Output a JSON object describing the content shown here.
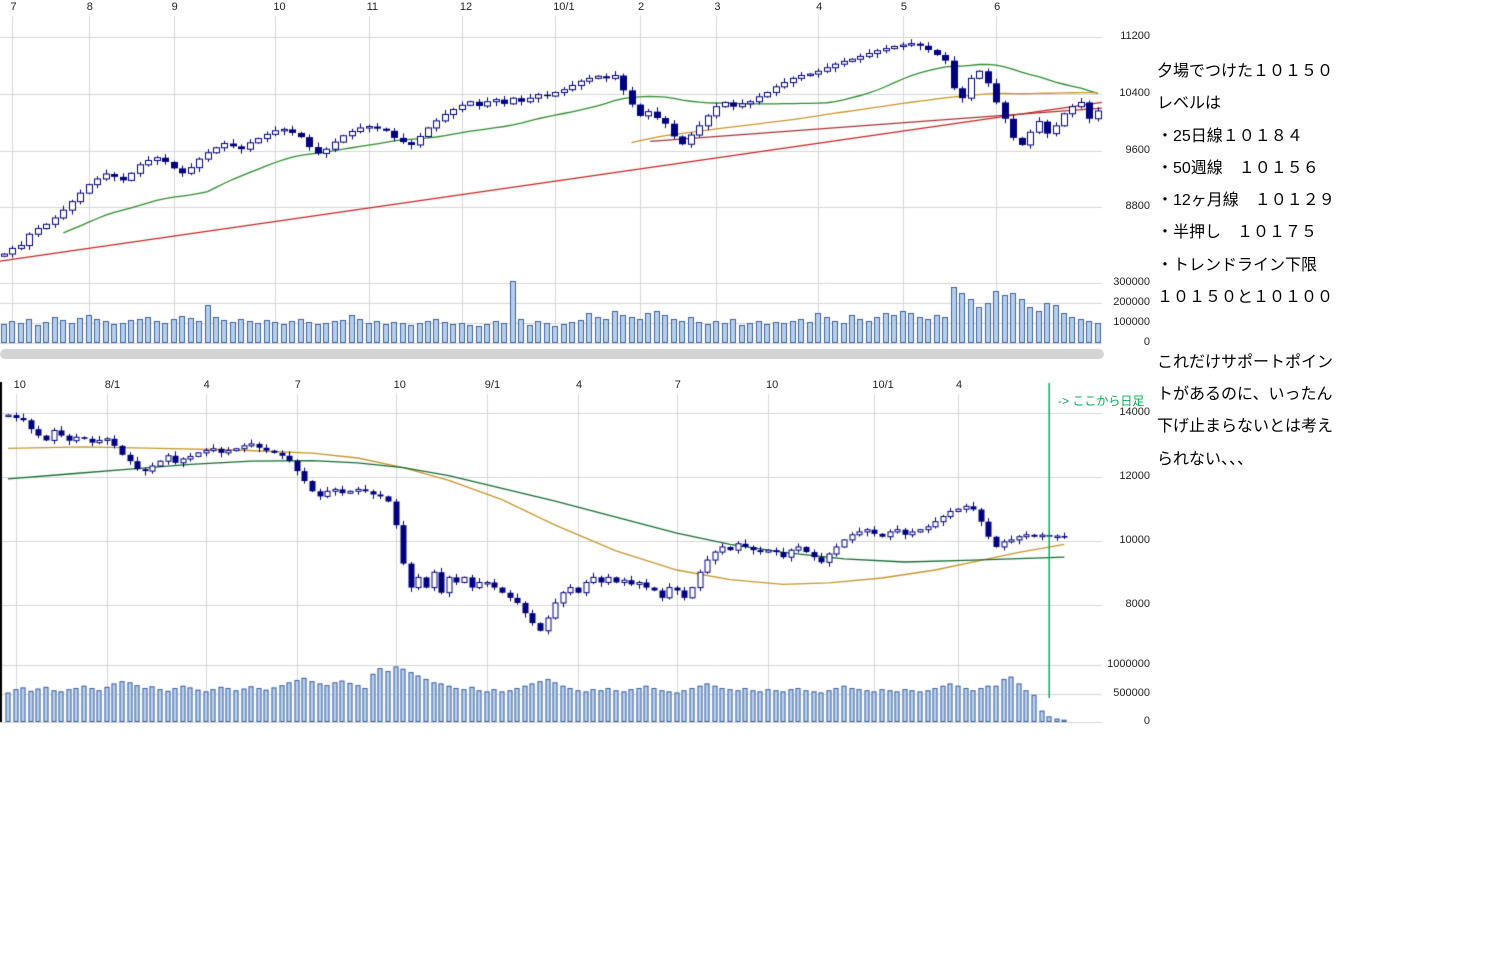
{
  "colors": {
    "grid": "#d6d6d6",
    "axis": "#000000",
    "candle": "#000080",
    "candle_up_fill": "#ffffff",
    "volume_fill": "#b5cfeb",
    "volume_border": "#41609f",
    "green": "#2e8b2e",
    "orange": "#c8962d",
    "dark_green": "#166b33",
    "red": "#cc2222",
    "red2": "#a83333",
    "vline_green": "#00b050",
    "tick_text": "#222222",
    "scrollbar": "#d4d4d4"
  },
  "right_panel": {
    "lines": [
      "夕場でつけた１０１５０",
      "レベルは",
      "・25日線１０１８４",
      "・50週線　１０１５６",
      "・12ヶ月線　１０１２９",
      "・半押し　１０１７５",
      "・トレンドライン下限",
      "１０１５０と１０１００",
      "",
      "これだけサポートポイン",
      "トがあるのに、いったん",
      "下げ止まらないとは考え",
      "られない、、、"
    ]
  },
  "chart_data": [
    {
      "name": "daily-candlestick-with-volume",
      "type": "candlestick",
      "x_labels": [
        {
          "t": "7",
          "i": 1
        },
        {
          "t": "8",
          "i": 10
        },
        {
          "t": "9",
          "i": 20
        },
        {
          "t": "10",
          "i": 32
        },
        {
          "t": "11",
          "i": 43
        },
        {
          "t": "12",
          "i": 54
        },
        {
          "t": "10/1",
          "i": 65
        },
        {
          "t": "2",
          "i": 75
        },
        {
          "t": "3",
          "i": 84
        },
        {
          "t": "4",
          "i": 96
        },
        {
          "t": "5",
          "i": 106
        },
        {
          "t": "6",
          "i": 117
        }
      ],
      "y_ticks": [
        11200,
        10400,
        9600,
        8800
      ],
      "y_range": [
        8000,
        11500
      ],
      "volume_ticks": [
        300000,
        200000,
        100000,
        0
      ],
      "volume_range": [
        0,
        385000
      ],
      "closes": [
        8140,
        8220,
        8260,
        8420,
        8500,
        8560,
        8650,
        8760,
        8880,
        9000,
        9120,
        9200,
        9270,
        9230,
        9180,
        9280,
        9400,
        9460,
        9500,
        9440,
        9350,
        9280,
        9360,
        9480,
        9570,
        9640,
        9700,
        9660,
        9620,
        9710,
        9770,
        9830,
        9880,
        9900,
        9850,
        9790,
        9650,
        9560,
        9620,
        9720,
        9810,
        9870,
        9920,
        9940,
        9910,
        9880,
        9780,
        9720,
        9680,
        9800,
        9920,
        10020,
        10110,
        10180,
        10240,
        10290,
        10230,
        10290,
        10320,
        10260,
        10340,
        10290,
        10340,
        10390,
        10370,
        10420,
        10460,
        10520,
        10580,
        10620,
        10650,
        10620,
        10660,
        10450,
        10250,
        10090,
        10150,
        10060,
        9980,
        9800,
        9690,
        9820,
        9950,
        10090,
        10220,
        10280,
        10220,
        10260,
        10290,
        10360,
        10420,
        10500,
        10560,
        10620,
        10660,
        10680,
        10720,
        10770,
        10820,
        10860,
        10890,
        10930,
        10970,
        11010,
        11040,
        11070,
        11090,
        11110,
        11080,
        11020,
        10950,
        10870,
        10480,
        10340,
        10620,
        10720,
        10550,
        10280,
        10050,
        9780,
        9680,
        9860,
        10010,
        9840,
        9950,
        10120,
        10220,
        10280,
        10050,
        10160
      ],
      "volumes": [
        95000,
        110000,
        100000,
        120000,
        90000,
        105000,
        130000,
        115000,
        100000,
        125000,
        140000,
        120000,
        110000,
        95000,
        100000,
        115000,
        120000,
        130000,
        110000,
        100000,
        120000,
        135000,
        125000,
        110000,
        190000,
        130000,
        115000,
        105000,
        120000,
        110000,
        100000,
        115000,
        105000,
        95000,
        110000,
        120000,
        105000,
        95000,
        100000,
        110000,
        115000,
        140000,
        120000,
        100000,
        110000,
        95000,
        105000,
        100000,
        90000,
        100000,
        110000,
        120000,
        105000,
        95000,
        100000,
        90000,
        85000,
        95000,
        110000,
        100000,
        310000,
        120000,
        90000,
        110000,
        100000,
        85000,
        95000,
        105000,
        115000,
        150000,
        130000,
        120000,
        160000,
        140000,
        130000,
        120000,
        150000,
        160000,
        140000,
        120000,
        110000,
        130000,
        105000,
        95000,
        110000,
        100000,
        120000,
        90000,
        100000,
        110000,
        95000,
        105000,
        100000,
        110000,
        120000,
        105000,
        150000,
        130000,
        110000,
        100000,
        140000,
        120000,
        110000,
        130000,
        150000,
        140000,
        160000,
        150000,
        130000,
        120000,
        140000,
        130000,
        280000,
        250000,
        220000,
        180000,
        200000,
        260000,
        240000,
        250000,
        220000,
        180000,
        160000,
        200000,
        190000,
        150000,
        130000,
        120000,
        110000,
        100000
      ],
      "ma_lines": [
        {
          "period": 25,
          "min_periods": 8,
          "color": "green"
        },
        {
          "period": 75,
          "min_periods": 75,
          "color": "orange"
        }
      ],
      "trendlines": [
        {
          "x1": 0.0,
          "p1": 8040,
          "x2": 1.0,
          "p2": 10280,
          "color": "red"
        },
        {
          "x1": 0.59,
          "p1": 9730,
          "x2": 1.0,
          "p2": 10200,
          "color": "red2"
        }
      ]
    },
    {
      "name": "weekly-candlestick-with-volume",
      "type": "candlestick",
      "x_labels": [
        {
          "t": "10",
          "i": 1
        },
        {
          "t": "8/1",
          "i": 13
        },
        {
          "t": "4",
          "i": 26
        },
        {
          "t": "7",
          "i": 38
        },
        {
          "t": "10",
          "i": 51
        },
        {
          "t": "9/1",
          "i": 63
        },
        {
          "t": "4",
          "i": 75
        },
        {
          "t": "7",
          "i": 88
        },
        {
          "t": "10",
          "i": 100
        },
        {
          "t": "10/1",
          "i": 114
        },
        {
          "t": "4",
          "i": 125
        }
      ],
      "y_ticks": [
        14000,
        12000,
        10000,
        8000
      ],
      "y_range": [
        6600,
        14600
      ],
      "volume_ticks": [
        1000000,
        500000,
        0
      ],
      "volume_range": [
        0,
        1200000
      ],
      "closes": [
        13940,
        13850,
        13780,
        13500,
        13300,
        13150,
        13460,
        13300,
        13140,
        13250,
        13200,
        13080,
        13150,
        13200,
        12980,
        12700,
        12500,
        12250,
        12190,
        12350,
        12500,
        12670,
        12450,
        12570,
        12650,
        12760,
        12830,
        12890,
        12760,
        12830,
        12890,
        12980,
        13040,
        12920,
        12830,
        12760,
        12670,
        12510,
        12190,
        11880,
        11560,
        11400,
        11560,
        11620,
        11500,
        11560,
        11620,
        11560,
        11460,
        11400,
        11240,
        10500,
        9300,
        8550,
        8870,
        8550,
        9030,
        8390,
        8870,
        8710,
        8870,
        8550,
        8710,
        8710,
        8550,
        8390,
        8230,
        8070,
        7750,
        7440,
        7200,
        7600,
        8070,
        8390,
        8550,
        8390,
        8710,
        8870,
        8710,
        8870,
        8710,
        8780,
        8650,
        8710,
        8550,
        8460,
        8230,
        8550,
        8460,
        8230,
        8550,
        9030,
        9410,
        9660,
        9820,
        9720,
        9920,
        9820,
        9720,
        9660,
        9720,
        9660,
        9500,
        9720,
        9820,
        9660,
        9500,
        9340,
        9600,
        9820,
        10040,
        10200,
        10290,
        10360,
        10230,
        10140,
        10290,
        10360,
        10200,
        10290,
        10360,
        10450,
        10610,
        10770,
        10930,
        11000,
        11090,
        10990,
        10610,
        10140,
        9820,
        9980,
        10040,
        10140,
        10200,
        10140,
        10190,
        10150,
        10160,
        10150
      ],
      "volumes": [
        520000,
        580000,
        610000,
        550000,
        590000,
        620000,
        560000,
        540000,
        580000,
        600000,
        640000,
        600000,
        560000,
        620000,
        680000,
        720000,
        700000,
        650000,
        600000,
        630000,
        580000,
        550000,
        600000,
        640000,
        610000,
        570000,
        540000,
        580000,
        620000,
        600000,
        560000,
        590000,
        630000,
        600000,
        570000,
        610000,
        650000,
        700000,
        740000,
        780000,
        720000,
        680000,
        650000,
        700000,
        730000,
        690000,
        650000,
        600000,
        850000,
        950000,
        900000,
        980000,
        940000,
        880000,
        820000,
        760000,
        700000,
        680000,
        640000,
        600000,
        580000,
        620000,
        560000,
        540000,
        580000,
        540000,
        560000,
        600000,
        640000,
        680000,
        720000,
        760000,
        700000,
        640000,
        600000,
        560000,
        540000,
        580000,
        560000,
        600000,
        560000,
        540000,
        580000,
        600000,
        640000,
        600000,
        560000,
        540000,
        520000,
        560000,
        600000,
        640000,
        680000,
        640000,
        600000,
        580000,
        560000,
        600000,
        560000,
        540000,
        580000,
        560000,
        540000,
        580000,
        600000,
        560000,
        540000,
        520000,
        560000,
        600000,
        640000,
        600000,
        580000,
        560000,
        540000,
        580000,
        560000,
        540000,
        580000,
        560000,
        540000,
        560000,
        600000,
        640000,
        680000,
        640000,
        600000,
        560000,
        600000,
        640000,
        640000,
        760000,
        800000,
        680000,
        560000,
        480000,
        200000,
        100000,
        60000,
        40000
      ],
      "ma_polylines": [
        {
          "color": "orange",
          "points": [
            [
              0,
              12900
            ],
            [
              10,
              12950
            ],
            [
              20,
              12900
            ],
            [
              30,
              12850
            ],
            [
              40,
              12750
            ],
            [
              46,
              12600
            ],
            [
              52,
              12300
            ],
            [
              58,
              11900
            ],
            [
              65,
              11300
            ],
            [
              72,
              10500
            ],
            [
              80,
              9700
            ],
            [
              88,
              9100
            ],
            [
              95,
              8800
            ],
            [
              102,
              8650
            ],
            [
              108,
              8700
            ],
            [
              115,
              8850
            ],
            [
              122,
              9100
            ],
            [
              128,
              9400
            ],
            [
              133,
              9650
            ],
            [
              139,
              9900
            ]
          ]
        },
        {
          "color": "dark_green",
          "points": [
            [
              0,
              11950
            ],
            [
              8,
              12100
            ],
            [
              16,
              12250
            ],
            [
              24,
              12400
            ],
            [
              32,
              12500
            ],
            [
              40,
              12520
            ],
            [
              46,
              12450
            ],
            [
              52,
              12300
            ],
            [
              58,
              12050
            ],
            [
              65,
              11650
            ],
            [
              72,
              11250
            ],
            [
              80,
              10750
            ],
            [
              88,
              10250
            ],
            [
              95,
              9900
            ],
            [
              102,
              9650
            ],
            [
              110,
              9450
            ],
            [
              118,
              9350
            ],
            [
              126,
              9400
            ],
            [
              132,
              9450
            ],
            [
              139,
              9500
            ]
          ]
        }
      ],
      "vline": {
        "i": 137,
        "label": "-> ここから日足"
      }
    }
  ]
}
